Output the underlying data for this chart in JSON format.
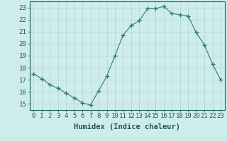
{
  "x": [
    0,
    1,
    2,
    3,
    4,
    5,
    6,
    7,
    8,
    9,
    10,
    11,
    12,
    13,
    14,
    15,
    16,
    17,
    18,
    19,
    20,
    21,
    22,
    23
  ],
  "y": [
    17.5,
    17.1,
    16.6,
    16.3,
    15.9,
    15.5,
    15.1,
    14.9,
    16.1,
    17.3,
    19.0,
    20.7,
    21.5,
    21.9,
    22.9,
    22.9,
    23.1,
    22.5,
    22.4,
    22.3,
    20.9,
    19.9,
    18.3,
    17.0
  ],
  "line_color": "#2e7d6e",
  "marker": "+",
  "marker_size": 4,
  "marker_lw": 1.0,
  "bg_color": "#ceecea",
  "grid_color": "#aed4d0",
  "xlabel": "Humidex (Indice chaleur)",
  "xlim": [
    -0.5,
    23.5
  ],
  "ylim": [
    14.5,
    23.5
  ],
  "yticks": [
    15,
    16,
    17,
    18,
    19,
    20,
    21,
    22,
    23
  ],
  "xticks": [
    0,
    1,
    2,
    3,
    4,
    5,
    6,
    7,
    8,
    9,
    10,
    11,
    12,
    13,
    14,
    15,
    16,
    17,
    18,
    19,
    20,
    21,
    22,
    23
  ],
  "tick_color": "#1a5c50",
  "label_fontsize": 7.5,
  "tick_fontsize": 6.5
}
